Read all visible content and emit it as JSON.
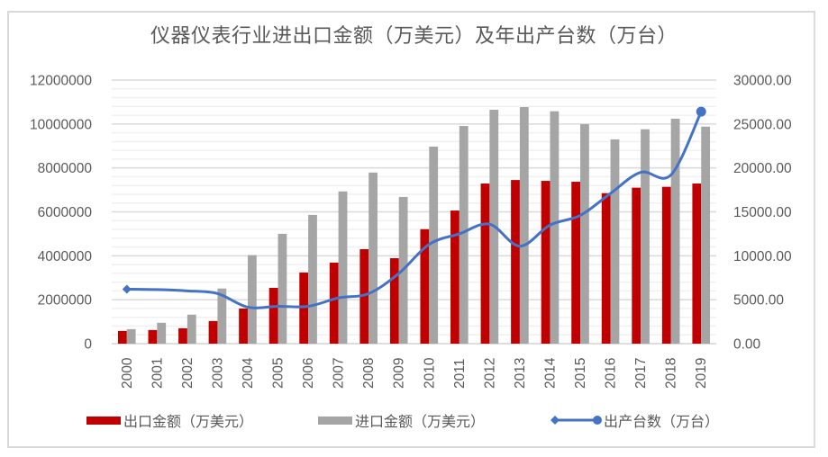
{
  "chart_data": {
    "type": "bar+line",
    "title": "仪器仪表行业进出口金额（万美元）及年出产台数（万台）",
    "categories": [
      "2000",
      "2001",
      "2002",
      "2003",
      "2004",
      "2005",
      "2006",
      "2007",
      "2008",
      "2009",
      "2010",
      "2011",
      "2012",
      "2013",
      "2014",
      "2015",
      "2016",
      "2017",
      "2018",
      "2019"
    ],
    "series": [
      {
        "name": "出口金额（万美元）",
        "type": "bar",
        "axis": "left",
        "color": "#C00000",
        "values": [
          580000,
          620000,
          700000,
          1030000,
          1600000,
          2540000,
          3240000,
          3690000,
          4300000,
          3890000,
          5210000,
          6060000,
          7290000,
          7450000,
          7410000,
          7370000,
          6850000,
          7100000,
          7140000,
          7290000
        ]
      },
      {
        "name": "进口金额（万美元）",
        "type": "bar",
        "axis": "left",
        "color": "#A5A5A5",
        "values": [
          660000,
          950000,
          1320000,
          2510000,
          4030000,
          5000000,
          5860000,
          6930000,
          7790000,
          6680000,
          8970000,
          9910000,
          10650000,
          10770000,
          10580000,
          9990000,
          9300000,
          9760000,
          10240000,
          9880000
        ]
      },
      {
        "name": "出产台数（万台）",
        "type": "line",
        "axis": "right",
        "color": "#4472C4",
        "smooth": true,
        "values": [
          6200,
          6150,
          6000,
          5700,
          4150,
          4250,
          4250,
          5200,
          5700,
          8000,
          11300,
          12500,
          13600,
          11100,
          13500,
          14600,
          17100,
          19500,
          19200,
          26400
        ]
      }
    ],
    "left_axis": {
      "ylim": [
        0,
        12000000
      ],
      "ticks": [
        "0",
        "2000000",
        "4000000",
        "6000000",
        "8000000",
        "10000000",
        "12000000"
      ],
      "tick_values": [
        0,
        2000000,
        4000000,
        6000000,
        8000000,
        10000000,
        12000000
      ]
    },
    "right_axis": {
      "ylim": [
        0,
        30000
      ],
      "ticks": [
        "0.00",
        "5000.00",
        "10000.00",
        "15000.00",
        "20000.00",
        "25000.00",
        "30000.00"
      ],
      "tick_values": [
        0,
        5000,
        10000,
        15000,
        20000,
        25000,
        30000
      ]
    },
    "grid": "major+minor",
    "legend_position": "bottom",
    "xlabel": "",
    "ylabel": ""
  }
}
